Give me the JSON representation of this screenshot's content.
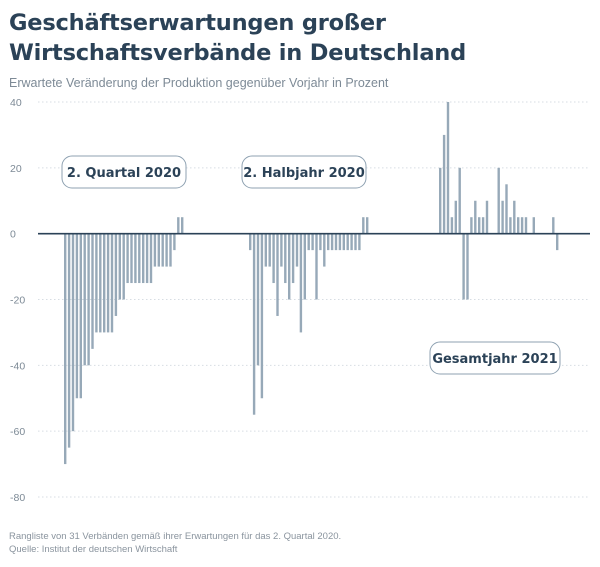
{
  "header": {
    "title_line1": "Geschäftserwartungen großer",
    "title_line2": "Wirtschaftsverbände in Deutschland",
    "subtitle": "Erwartete Veränderung der Produktion gegenüber Vorjahr in Prozent"
  },
  "footer": {
    "note": "Rangliste von 31 Verbänden gemäß ihrer Erwartungen für das 2. Quartal 2020.",
    "source": "Quelle: Institut der deutschen Wirtschaft"
  },
  "colors": {
    "bar": "#97a9b8",
    "zero_line": "#2b4257",
    "grid": "#d7dde3",
    "label_border": "#8fa2b2",
    "label_text": "#2b4257",
    "tick_text": "#7d8a96"
  },
  "chart_data": {
    "type": "bar",
    "title": "Geschäftserwartungen großer Wirtschaftsverbände in Deutschland",
    "subtitle": "Erwartete Veränderung der Produktion gegenüber Vorjahr in Prozent",
    "ylim": [
      -80,
      40
    ],
    "yticks": [
      40,
      20,
      0,
      -20,
      -40,
      -60,
      -80
    ],
    "ytick_labels": [
      "40",
      "20",
      "0",
      "-20",
      "-40",
      "-60",
      "-80"
    ],
    "grid": true,
    "series": [
      {
        "name": "2. Quartal 2020",
        "values": [
          -70,
          -65,
          -60,
          -50,
          -50,
          -40,
          -40,
          -35,
          -30,
          -30,
          -30,
          -30,
          -30,
          -25,
          -20,
          -20,
          -15,
          -15,
          -15,
          -15,
          -15,
          -15,
          -15,
          -10,
          -10,
          -10,
          -10,
          -10,
          -5,
          5,
          5
        ]
      },
      {
        "name": "2. Halbjahr 2020",
        "values": [
          -5,
          -55,
          -40,
          -50,
          -10,
          -10,
          -15,
          -25,
          -10,
          -15,
          -20,
          -15,
          -10,
          -30,
          -20,
          -5,
          -5,
          -20,
          -5,
          -10,
          -5,
          -5,
          -5,
          -5,
          -5,
          -5,
          -5,
          -5,
          -5,
          5,
          5
        ]
      },
      {
        "name": "Gesamtjahr 2021",
        "values": [
          20,
          30,
          40,
          5,
          10,
          20,
          -20,
          -20,
          5,
          10,
          5,
          5,
          10,
          0,
          0,
          20,
          10,
          15,
          5,
          10,
          5,
          5,
          5,
          0,
          5,
          0,
          0,
          0,
          0,
          5,
          -5
        ]
      }
    ]
  }
}
